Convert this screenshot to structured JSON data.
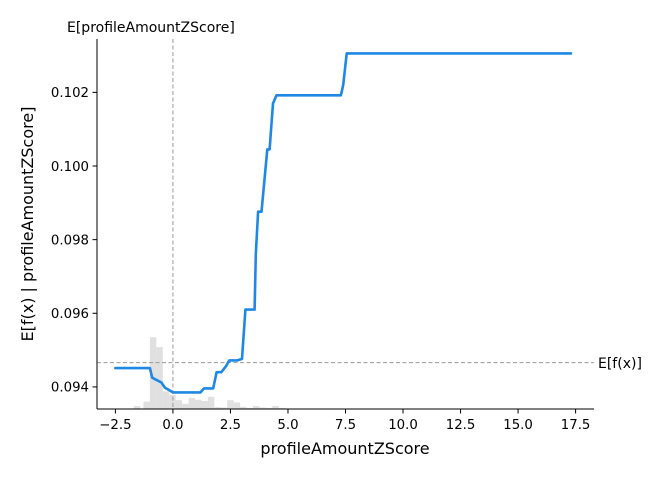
{
  "chart_data": {
    "type": "line",
    "title": "",
    "xlabel": "profileAmountZScore",
    "ylabel": "E[f(x) | profileAmountZScore]",
    "xlim": [
      -3.3,
      18.3
    ],
    "ylim": [
      0.0934,
      0.10345
    ],
    "x_ticks": [
      -2.5,
      0.0,
      2.5,
      5.0,
      7.5,
      10.0,
      12.5,
      15.0,
      17.5
    ],
    "x_tick_labels": [
      "−2.5",
      "0.0",
      "2.5",
      "5.0",
      "7.5",
      "10.0",
      "12.5",
      "15.0",
      "17.5"
    ],
    "y_ticks": [
      0.094,
      0.096,
      0.098,
      0.1,
      0.102
    ],
    "y_tick_labels": [
      "0.094",
      "0.096",
      "0.098",
      "0.100",
      "0.102"
    ],
    "grid": false,
    "series": [
      {
        "color": "#1e88e5",
        "x": [
          -2.5,
          -1.0,
          -0.9,
          -0.5,
          -0.35,
          0.0,
          1.2,
          1.35,
          1.75,
          1.9,
          2.1,
          2.3,
          2.45,
          2.8,
          3.0,
          3.15,
          3.55,
          3.6,
          3.7,
          3.85,
          4.1,
          4.2,
          4.35,
          4.5,
          4.6,
          4.75,
          7.3,
          7.4,
          7.55,
          17.3
        ],
        "y": [
          0.09451,
          0.09451,
          0.09425,
          0.09412,
          0.09398,
          0.09385,
          0.09385,
          0.09396,
          0.09396,
          0.0944,
          0.0944,
          0.09456,
          0.09472,
          0.09472,
          0.09476,
          0.0961,
          0.0961,
          0.0976,
          0.09876,
          0.09876,
          0.10045,
          0.10045,
          0.1017,
          0.10192,
          0.10192,
          0.10192,
          0.10192,
          0.1022,
          0.10306,
          0.10306
        ]
      }
    ],
    "histogram": {
      "color": "#cccccc",
      "bin_width": 0.28,
      "bin_starts": [
        -1.7,
        -1.28,
        -1.0,
        -0.72,
        -0.44,
        -0.16,
        0.12,
        0.4,
        0.68,
        0.96,
        1.24,
        1.52,
        1.8,
        2.08,
        2.36,
        2.64,
        2.92,
        3.2,
        3.48,
        3.76,
        4.04,
        4.32,
        4.6
      ],
      "heights": [
        8e-05,
        0.0002,
        0.00195,
        0.00168,
        0.00048,
        0.00038,
        0.00024,
        0.00014,
        0.0003,
        0.00025,
        0.00022,
        0.00033,
        5e-05,
        4e-05,
        0.00024,
        0.00018,
        6e-05,
        3e-05,
        8e-05,
        4e-05,
        3e-05,
        8e-05,
        3e-05
      ]
    },
    "reference_lines": [
      {
        "orientation": "vertical",
        "value": 0.0,
        "label": "E[profileAmountZScore]",
        "color": "#999999",
        "style": "dashed"
      },
      {
        "orientation": "horizontal",
        "value": 0.09466,
        "label": "E[f(x)]",
        "color": "#999999",
        "style": "dashed"
      }
    ]
  }
}
